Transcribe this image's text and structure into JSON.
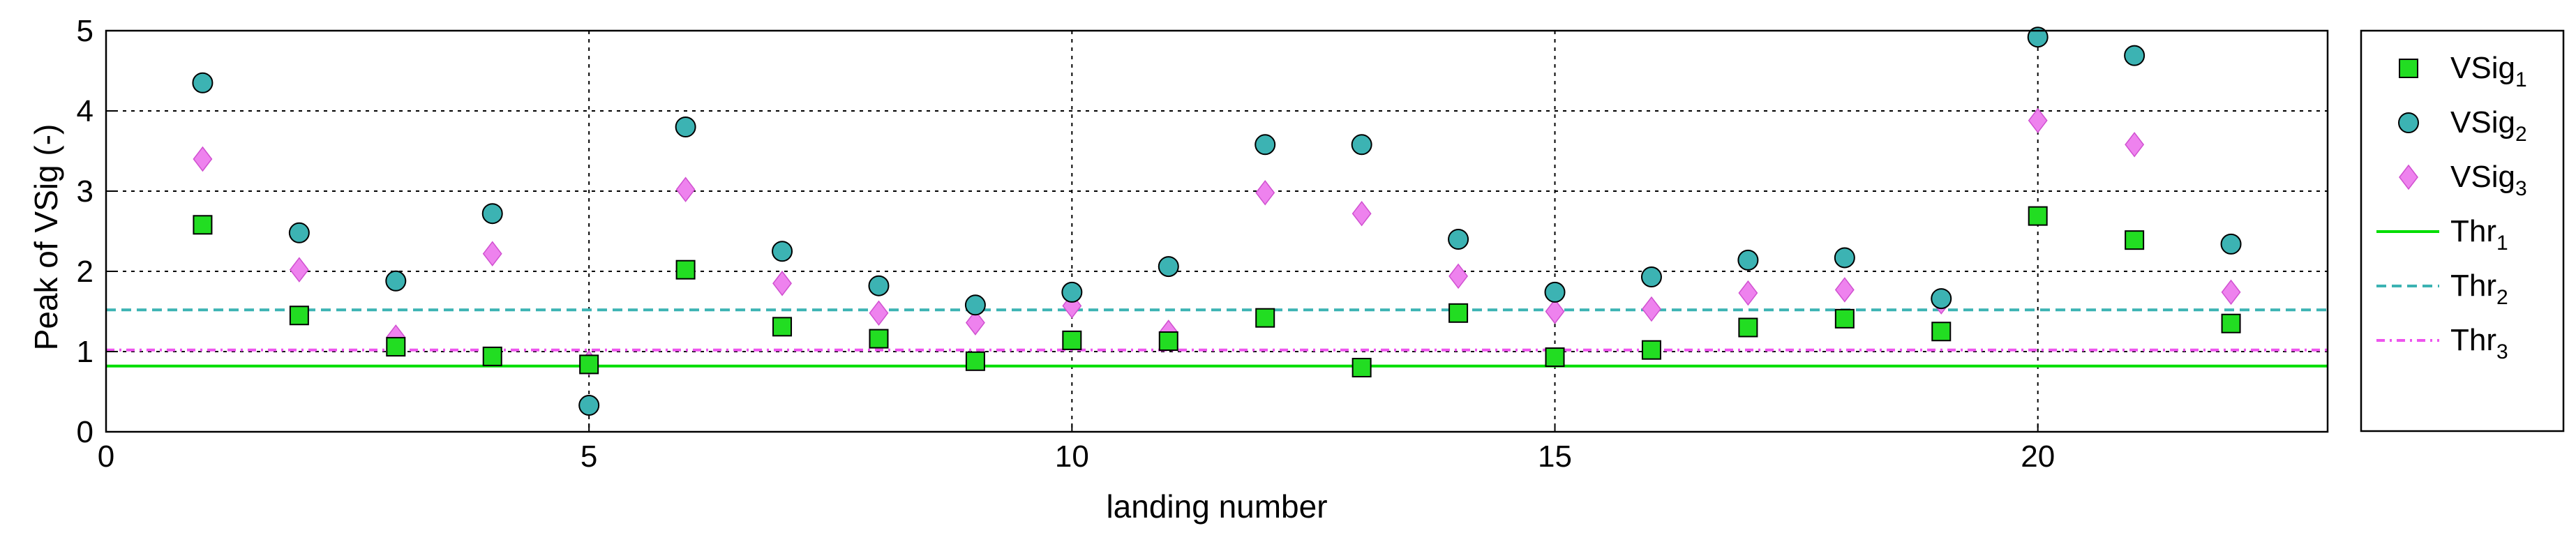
{
  "chart_data": {
    "type": "scatter",
    "xlabel": "landing number",
    "ylabel": "Peak of VSig (-)",
    "xlim": [
      0,
      23
    ],
    "ylim": [
      0,
      5
    ],
    "xticks": [
      "0",
      "5",
      "10",
      "15",
      "20"
    ],
    "yticks": [
      "0",
      "1",
      "2",
      "3",
      "4",
      "5"
    ],
    "grid": true,
    "legend_position": "outside-right",
    "x": [
      1,
      2,
      3,
      4,
      5,
      6,
      7,
      8,
      9,
      10,
      11,
      12,
      13,
      14,
      15,
      16,
      17,
      18,
      19,
      20,
      21,
      22
    ],
    "series": [
      {
        "name": "VSig",
        "subscript": "1",
        "marker": "square",
        "color": "#22dd22",
        "values": [
          2.58,
          1.45,
          1.06,
          0.94,
          0.84,
          2.02,
          1.31,
          1.16,
          0.88,
          1.14,
          1.13,
          1.42,
          0.8,
          1.48,
          0.93,
          1.02,
          1.3,
          1.41,
          1.25,
          2.69,
          2.39,
          1.35
        ]
      },
      {
        "name": "VSig",
        "subscript": "2",
        "marker": "circle",
        "color": "#3cb3b3",
        "values": [
          4.35,
          2.48,
          1.88,
          2.72,
          0.33,
          3.8,
          2.25,
          1.82,
          1.58,
          1.74,
          2.06,
          3.58,
          3.58,
          2.4,
          1.74,
          1.93,
          2.14,
          2.17,
          1.66,
          4.92,
          4.69,
          2.34
        ]
      },
      {
        "name": "VSig",
        "subscript": "3",
        "marker": "diamond",
        "color": "#ee82ee",
        "values": [
          3.4,
          2.02,
          1.18,
          2.22,
          0.86,
          3.02,
          1.85,
          1.48,
          1.36,
          1.57,
          1.24,
          2.98,
          2.72,
          1.94,
          1.5,
          1.53,
          1.73,
          1.77,
          1.62,
          3.88,
          3.58,
          1.74
        ]
      }
    ],
    "thresholds": [
      {
        "name": "Thr",
        "subscript": "1",
        "value": 0.82,
        "style": "solid",
        "color": "#00dd00"
      },
      {
        "name": "Thr",
        "subscript": "2",
        "value": 1.52,
        "style": "dashed",
        "color": "#3cb3b3"
      },
      {
        "name": "Thr",
        "subscript": "3",
        "value": 1.02,
        "style": "dashdot",
        "color": "#ee55ee"
      }
    ]
  }
}
